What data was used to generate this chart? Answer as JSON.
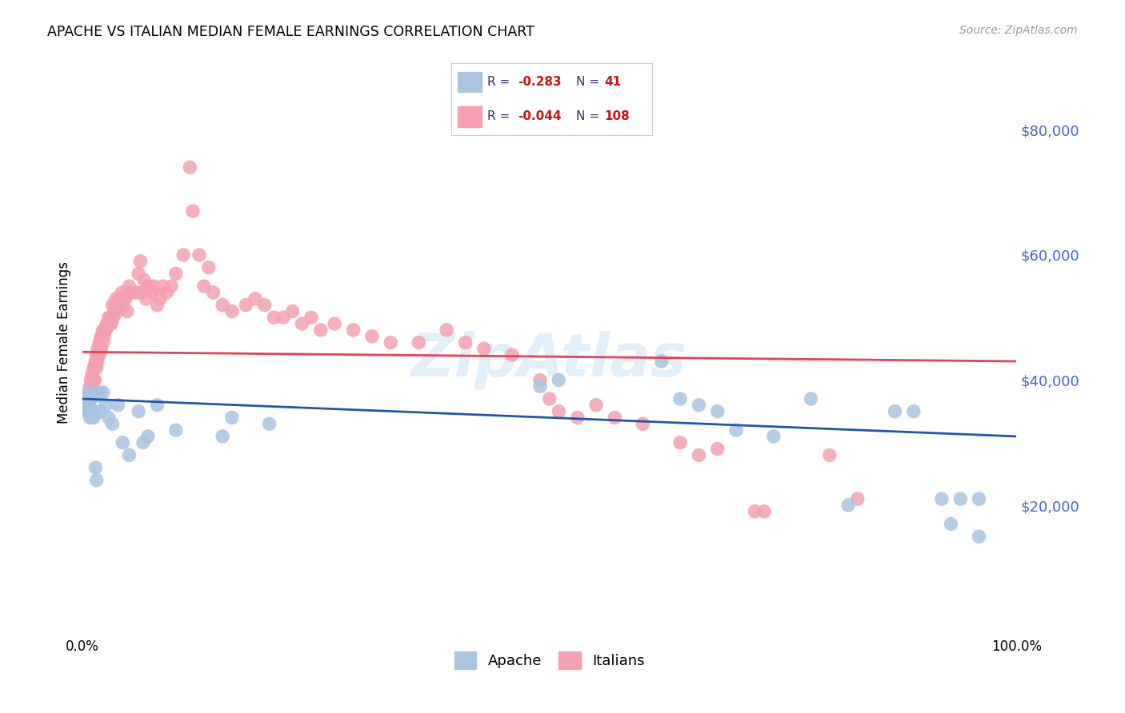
{
  "title": "APACHE VS ITALIAN MEDIAN FEMALE EARNINGS CORRELATION CHART",
  "source": "Source: ZipAtlas.com",
  "ylabel": "Median Female Earnings",
  "ytick_values": [
    20000,
    40000,
    60000,
    80000
  ],
  "ymin": 0,
  "ymax": 92000,
  "xmin": 0.0,
  "xmax": 1.0,
  "apache_color": "#a8c4e0",
  "italian_color": "#f4a0b0",
  "apache_line_color": "#2255aa",
  "italian_line_color": "#e8405a",
  "background_color": "#ffffff",
  "grid_color": "#d8d8d8",
  "apache_points": [
    [
      0.004,
      37000
    ],
    [
      0.005,
      36000
    ],
    [
      0.006,
      35000
    ],
    [
      0.007,
      38000
    ],
    [
      0.008,
      34000
    ],
    [
      0.009,
      37000
    ],
    [
      0.01,
      35000
    ],
    [
      0.011,
      34000
    ],
    [
      0.012,
      34000
    ],
    [
      0.013,
      35000
    ],
    [
      0.014,
      26000
    ],
    [
      0.015,
      24000
    ],
    [
      0.017,
      37500
    ],
    [
      0.018,
      38000
    ],
    [
      0.019,
      35000
    ],
    [
      0.022,
      38000
    ],
    [
      0.025,
      36000
    ],
    [
      0.028,
      34000
    ],
    [
      0.032,
      33000
    ],
    [
      0.038,
      36000
    ],
    [
      0.043,
      30000
    ],
    [
      0.05,
      28000
    ],
    [
      0.06,
      35000
    ],
    [
      0.065,
      30000
    ],
    [
      0.07,
      31000
    ],
    [
      0.08,
      36000
    ],
    [
      0.1,
      32000
    ],
    [
      0.15,
      31000
    ],
    [
      0.16,
      34000
    ],
    [
      0.2,
      33000
    ],
    [
      0.49,
      39000
    ],
    [
      0.51,
      40000
    ],
    [
      0.62,
      43000
    ],
    [
      0.64,
      37000
    ],
    [
      0.66,
      36000
    ],
    [
      0.68,
      35000
    ],
    [
      0.7,
      32000
    ],
    [
      0.74,
      31000
    ],
    [
      0.78,
      37000
    ],
    [
      0.92,
      21000
    ],
    [
      0.94,
      21000
    ],
    [
      0.96,
      21000
    ],
    [
      0.82,
      20000
    ],
    [
      0.87,
      35000
    ],
    [
      0.89,
      35000
    ],
    [
      0.93,
      17000
    ],
    [
      0.96,
      15000
    ]
  ],
  "italian_points": [
    [
      0.003,
      36000
    ],
    [
      0.004,
      36000
    ],
    [
      0.004,
      35000
    ],
    [
      0.005,
      37000
    ],
    [
      0.005,
      36500
    ],
    [
      0.006,
      38000
    ],
    [
      0.006,
      37000
    ],
    [
      0.007,
      37000
    ],
    [
      0.007,
      36500
    ],
    [
      0.008,
      39000
    ],
    [
      0.008,
      37000
    ],
    [
      0.009,
      40000
    ],
    [
      0.009,
      38000
    ],
    [
      0.01,
      41000
    ],
    [
      0.01,
      39000
    ],
    [
      0.011,
      40000
    ],
    [
      0.012,
      42000
    ],
    [
      0.012,
      40000
    ],
    [
      0.013,
      42000
    ],
    [
      0.013,
      40000
    ],
    [
      0.014,
      43000
    ],
    [
      0.015,
      44000
    ],
    [
      0.015,
      42000
    ],
    [
      0.016,
      45000
    ],
    [
      0.016,
      43000
    ],
    [
      0.017,
      44000
    ],
    [
      0.018,
      46000
    ],
    [
      0.018,
      44000
    ],
    [
      0.019,
      45000
    ],
    [
      0.02,
      47000
    ],
    [
      0.02,
      45000
    ],
    [
      0.021,
      47000
    ],
    [
      0.022,
      48000
    ],
    [
      0.022,
      46000
    ],
    [
      0.023,
      47000
    ],
    [
      0.024,
      48000
    ],
    [
      0.025,
      48000
    ],
    [
      0.026,
      49000
    ],
    [
      0.027,
      49000
    ],
    [
      0.028,
      50000
    ],
    [
      0.029,
      49000
    ],
    [
      0.03,
      50000
    ],
    [
      0.031,
      49000
    ],
    [
      0.032,
      52000
    ],
    [
      0.033,
      50000
    ],
    [
      0.034,
      51000
    ],
    [
      0.035,
      52000
    ],
    [
      0.036,
      53000
    ],
    [
      0.037,
      52000
    ],
    [
      0.038,
      51000
    ],
    [
      0.04,
      53000
    ],
    [
      0.042,
      54000
    ],
    [
      0.044,
      52000
    ],
    [
      0.046,
      53000
    ],
    [
      0.048,
      51000
    ],
    [
      0.05,
      55000
    ],
    [
      0.052,
      54000
    ],
    [
      0.055,
      54000
    ],
    [
      0.058,
      54000
    ],
    [
      0.06,
      57000
    ],
    [
      0.062,
      59000
    ],
    [
      0.064,
      54000
    ],
    [
      0.066,
      56000
    ],
    [
      0.068,
      53000
    ],
    [
      0.07,
      55000
    ],
    [
      0.072,
      55000
    ],
    [
      0.074,
      54000
    ],
    [
      0.076,
      55000
    ],
    [
      0.08,
      52000
    ],
    [
      0.083,
      53000
    ],
    [
      0.086,
      55000
    ],
    [
      0.09,
      54000
    ],
    [
      0.095,
      55000
    ],
    [
      0.1,
      57000
    ],
    [
      0.108,
      60000
    ],
    [
      0.115,
      74000
    ],
    [
      0.118,
      67000
    ],
    [
      0.125,
      60000
    ],
    [
      0.13,
      55000
    ],
    [
      0.135,
      58000
    ],
    [
      0.14,
      54000
    ],
    [
      0.15,
      52000
    ],
    [
      0.16,
      51000
    ],
    [
      0.175,
      52000
    ],
    [
      0.185,
      53000
    ],
    [
      0.195,
      52000
    ],
    [
      0.205,
      50000
    ],
    [
      0.215,
      50000
    ],
    [
      0.225,
      51000
    ],
    [
      0.235,
      49000
    ],
    [
      0.245,
      50000
    ],
    [
      0.255,
      48000
    ],
    [
      0.27,
      49000
    ],
    [
      0.29,
      48000
    ],
    [
      0.31,
      47000
    ],
    [
      0.33,
      46000
    ],
    [
      0.36,
      46000
    ],
    [
      0.39,
      48000
    ],
    [
      0.41,
      46000
    ],
    [
      0.43,
      45000
    ],
    [
      0.46,
      44000
    ],
    [
      0.49,
      40000
    ],
    [
      0.51,
      35000
    ],
    [
      0.53,
      34000
    ],
    [
      0.55,
      36000
    ],
    [
      0.57,
      34000
    ],
    [
      0.5,
      37000
    ],
    [
      0.6,
      33000
    ],
    [
      0.64,
      30000
    ],
    [
      0.66,
      28000
    ],
    [
      0.68,
      29000
    ],
    [
      0.72,
      19000
    ],
    [
      0.73,
      19000
    ],
    [
      0.8,
      28000
    ],
    [
      0.83,
      21000
    ]
  ]
}
